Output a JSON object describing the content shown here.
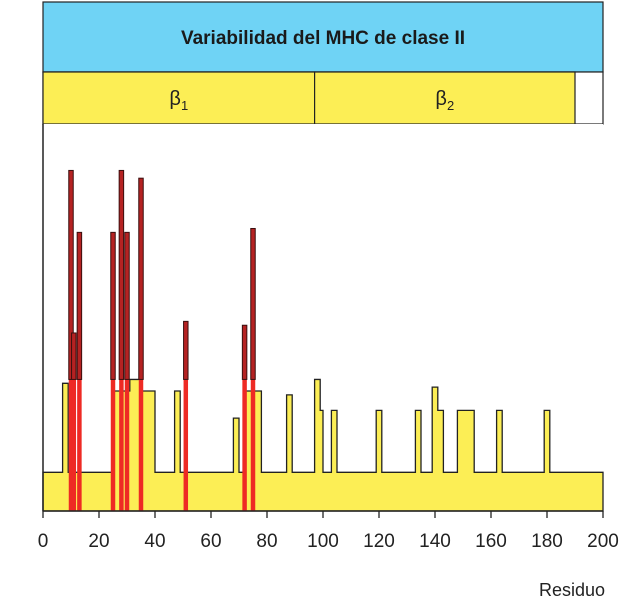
{
  "chart_data": {
    "type": "bar",
    "title": "Variabilidad del MHC de clase II",
    "xlabel": "Residuo",
    "ylabel": "",
    "xlim": [
      0,
      200
    ],
    "ylim": [
      0,
      100
    ],
    "xticks": [
      "0",
      "20",
      "40",
      "60",
      "80",
      "100",
      "120",
      "140",
      "160",
      "180",
      "200"
    ],
    "domains": [
      {
        "name": "β",
        "sub": "1",
        "start": 0,
        "end": 97
      },
      {
        "name": "β",
        "sub": "2",
        "start": 97,
        "end": 190
      }
    ],
    "series": [
      {
        "kind": "yellow-profile",
        "baseline": 10,
        "points": [
          [
            0,
            10
          ],
          [
            7,
            10
          ],
          [
            7,
            33
          ],
          [
            9,
            33
          ],
          [
            9,
            10
          ],
          [
            25,
            10
          ],
          [
            25,
            31
          ],
          [
            31,
            31
          ],
          [
            31,
            34
          ],
          [
            35,
            34
          ],
          [
            35,
            31
          ],
          [
            37,
            31
          ],
          [
            37,
            31
          ],
          [
            39,
            31
          ],
          [
            39,
            31
          ],
          [
            40,
            31
          ],
          [
            40,
            10
          ],
          [
            47,
            10
          ],
          [
            47,
            31
          ],
          [
            49,
            31
          ],
          [
            49,
            10
          ],
          [
            68,
            10
          ],
          [
            68,
            24
          ],
          [
            70,
            24
          ],
          [
            70,
            10
          ],
          [
            72,
            10
          ],
          [
            72,
            31
          ],
          [
            78,
            31
          ],
          [
            78,
            10
          ],
          [
            87,
            10
          ],
          [
            87,
            30
          ],
          [
            89,
            30
          ],
          [
            89,
            10
          ],
          [
            97,
            10
          ],
          [
            97,
            34
          ],
          [
            99,
            34
          ],
          [
            99,
            26
          ],
          [
            100,
            26
          ],
          [
            100,
            10
          ],
          [
            103,
            10
          ],
          [
            103,
            26
          ],
          [
            105,
            26
          ],
          [
            105,
            10
          ],
          [
            119,
            10
          ],
          [
            119,
            26
          ],
          [
            121,
            26
          ],
          [
            121,
            10
          ],
          [
            133,
            10
          ],
          [
            133,
            26
          ],
          [
            135,
            26
          ],
          [
            135,
            10
          ],
          [
            139,
            10
          ],
          [
            139,
            32
          ],
          [
            141,
            32
          ],
          [
            141,
            26
          ],
          [
            143,
            26
          ],
          [
            143,
            10
          ],
          [
            148,
            10
          ],
          [
            148,
            26
          ],
          [
            154,
            26
          ],
          [
            154,
            10
          ],
          [
            162,
            10
          ],
          [
            162,
            26
          ],
          [
            164,
            26
          ],
          [
            164,
            10
          ],
          [
            179,
            10
          ],
          [
            179,
            26
          ],
          [
            181,
            26
          ],
          [
            181,
            10
          ],
          [
            200,
            10
          ]
        ]
      },
      {
        "kind": "red-spikes",
        "bars": [
          {
            "x": 10,
            "value": 88
          },
          {
            "x": 11,
            "value": 46
          },
          {
            "x": 13,
            "value": 72
          },
          {
            "x": 25,
            "value": 72
          },
          {
            "x": 28,
            "value": 88
          },
          {
            "x": 30,
            "value": 72
          },
          {
            "x": 35,
            "value": 86
          },
          {
            "x": 51,
            "value": 49
          },
          {
            "x": 72,
            "value": 48
          },
          {
            "x": 75,
            "value": 73
          }
        ]
      }
    ]
  }
}
